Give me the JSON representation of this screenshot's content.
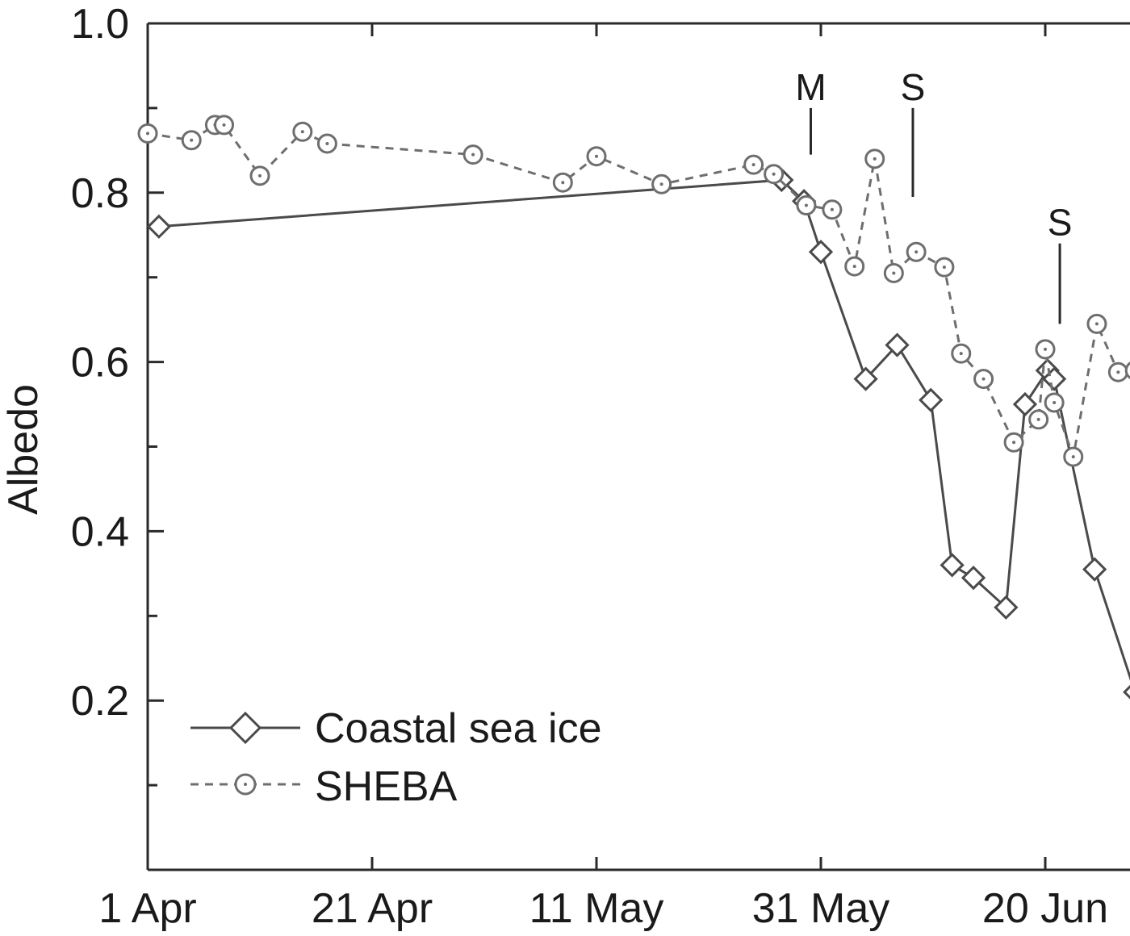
{
  "chart_data": {
    "type": "line",
    "title": "",
    "xlabel": "",
    "ylabel": "Albedo",
    "x_ticks": [
      {
        "day": 0,
        "label": "1 Apr"
      },
      {
        "day": 20,
        "label": "21 Apr"
      },
      {
        "day": 40,
        "label": "11 May"
      },
      {
        "day": 60,
        "label": "31 May"
      },
      {
        "day": 80,
        "label": "20 Jun"
      }
    ],
    "y_ticks": [
      {
        "value": 0.2,
        "label": "0.2"
      },
      {
        "value": 0.4,
        "label": "0.4"
      },
      {
        "value": 0.6,
        "label": "0.6"
      },
      {
        "value": 0.8,
        "label": "0.8"
      },
      {
        "value": 1.0,
        "label": "1.0"
      }
    ],
    "x_range_days": [
      0,
      88
    ],
    "ylim": [
      0,
      1.0
    ],
    "grid": false,
    "legend_position": "bottom-left",
    "series": [
      {
        "name": "Coastal sea ice",
        "marker": "diamond",
        "line_style": "solid",
        "color": "#4a4a4a",
        "points": [
          {
            "day": 1,
            "albedo": 0.76
          },
          {
            "day": 56.5,
            "albedo": 0.815
          },
          {
            "day": 58.5,
            "albedo": 0.79
          },
          {
            "day": 60,
            "albedo": 0.73
          },
          {
            "day": 64,
            "albedo": 0.58
          },
          {
            "day": 66.8,
            "albedo": 0.62
          },
          {
            "day": 69.8,
            "albedo": 0.555
          },
          {
            "day": 71.7,
            "albedo": 0.36
          },
          {
            "day": 73.6,
            "albedo": 0.345
          },
          {
            "day": 76.5,
            "albedo": 0.31
          },
          {
            "day": 78.2,
            "albedo": 0.55
          },
          {
            "day": 80.2,
            "albedo": 0.59
          },
          {
            "day": 80.8,
            "albedo": 0.58
          },
          {
            "day": 84.4,
            "albedo": 0.355
          },
          {
            "day": 88,
            "albedo": 0.21
          }
        ]
      },
      {
        "name": "SHEBA",
        "marker": "circle",
        "line_style": "dashed",
        "color": "#6e6e6e",
        "points": [
          {
            "day": 0,
            "albedo": 0.87
          },
          {
            "day": 3.9,
            "albedo": 0.862
          },
          {
            "day": 6,
            "albedo": 0.88
          },
          {
            "day": 6.8,
            "albedo": 0.88
          },
          {
            "day": 10,
            "albedo": 0.82
          },
          {
            "day": 13.8,
            "albedo": 0.872
          },
          {
            "day": 16,
            "albedo": 0.858
          },
          {
            "day": 29,
            "albedo": 0.845
          },
          {
            "day": 37,
            "albedo": 0.812
          },
          {
            "day": 40,
            "albedo": 0.843
          },
          {
            "day": 45.8,
            "albedo": 0.81
          },
          {
            "day": 54,
            "albedo": 0.833
          },
          {
            "day": 55.8,
            "albedo": 0.822
          },
          {
            "day": 58.7,
            "albedo": 0.785
          },
          {
            "day": 61,
            "albedo": 0.78
          },
          {
            "day": 63,
            "albedo": 0.713
          },
          {
            "day": 64.8,
            "albedo": 0.84
          },
          {
            "day": 66.5,
            "albedo": 0.705
          },
          {
            "day": 68.5,
            "albedo": 0.73
          },
          {
            "day": 71,
            "albedo": 0.712
          },
          {
            "day": 72.5,
            "albedo": 0.61
          },
          {
            "day": 74.5,
            "albedo": 0.58
          },
          {
            "day": 77.2,
            "albedo": 0.505
          },
          {
            "day": 79.4,
            "albedo": 0.532
          },
          {
            "day": 80,
            "albedo": 0.615
          },
          {
            "day": 80.8,
            "albedo": 0.552
          },
          {
            "day": 82.5,
            "albedo": 0.488
          },
          {
            "day": 84.6,
            "albedo": 0.645
          },
          {
            "day": 86.5,
            "albedo": 0.588
          },
          {
            "day": 88,
            "albedo": 0.59
          }
        ]
      }
    ],
    "annotations": [
      {
        "label": "M",
        "day": 59.1,
        "line_bottom": 0.845,
        "line_top": 0.9
      },
      {
        "label": "S",
        "day": 68.2,
        "line_bottom": 0.795,
        "line_top": 0.9
      },
      {
        "label": "S",
        "day": 81.3,
        "line_bottom": 0.645,
        "line_top": 0.74
      }
    ]
  }
}
